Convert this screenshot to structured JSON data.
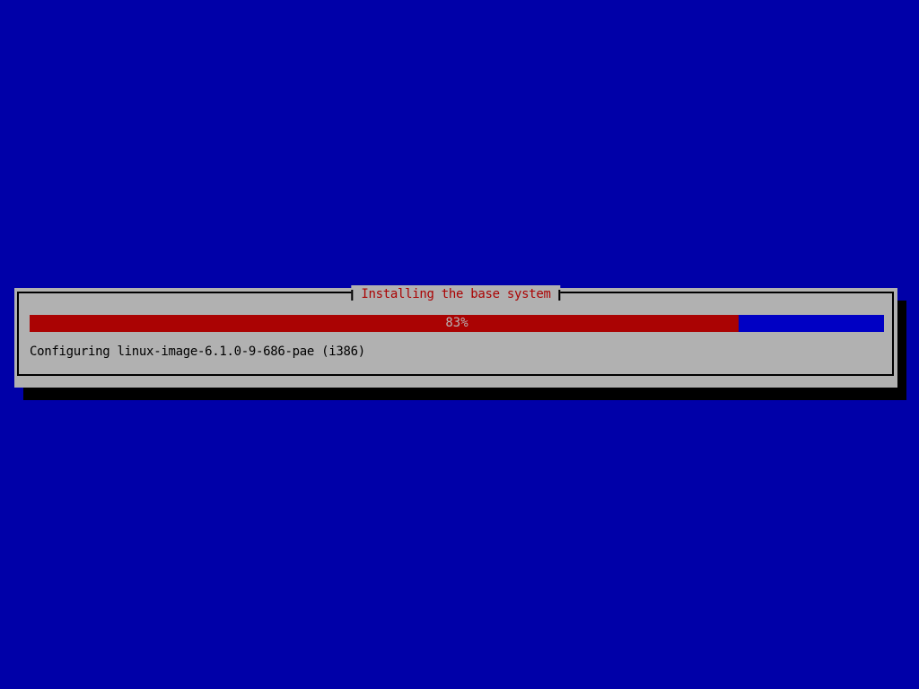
{
  "screen": {
    "background_color": "#0000a8"
  },
  "dialog": {
    "title": "Installing the base system",
    "background_color": "#b1b1b1",
    "title_color": "#aa0303",
    "border_color": "#000000",
    "shadow_color": "#000000",
    "progress": {
      "percent": 83,
      "label": "83%",
      "fill_color": "#aa0303",
      "empty_color": "#0000c4",
      "label_color": "#b8b4b4"
    },
    "status_text": "Configuring linux-image-6.1.0-9-686-pae (i386)",
    "status_color": "#000000"
  }
}
